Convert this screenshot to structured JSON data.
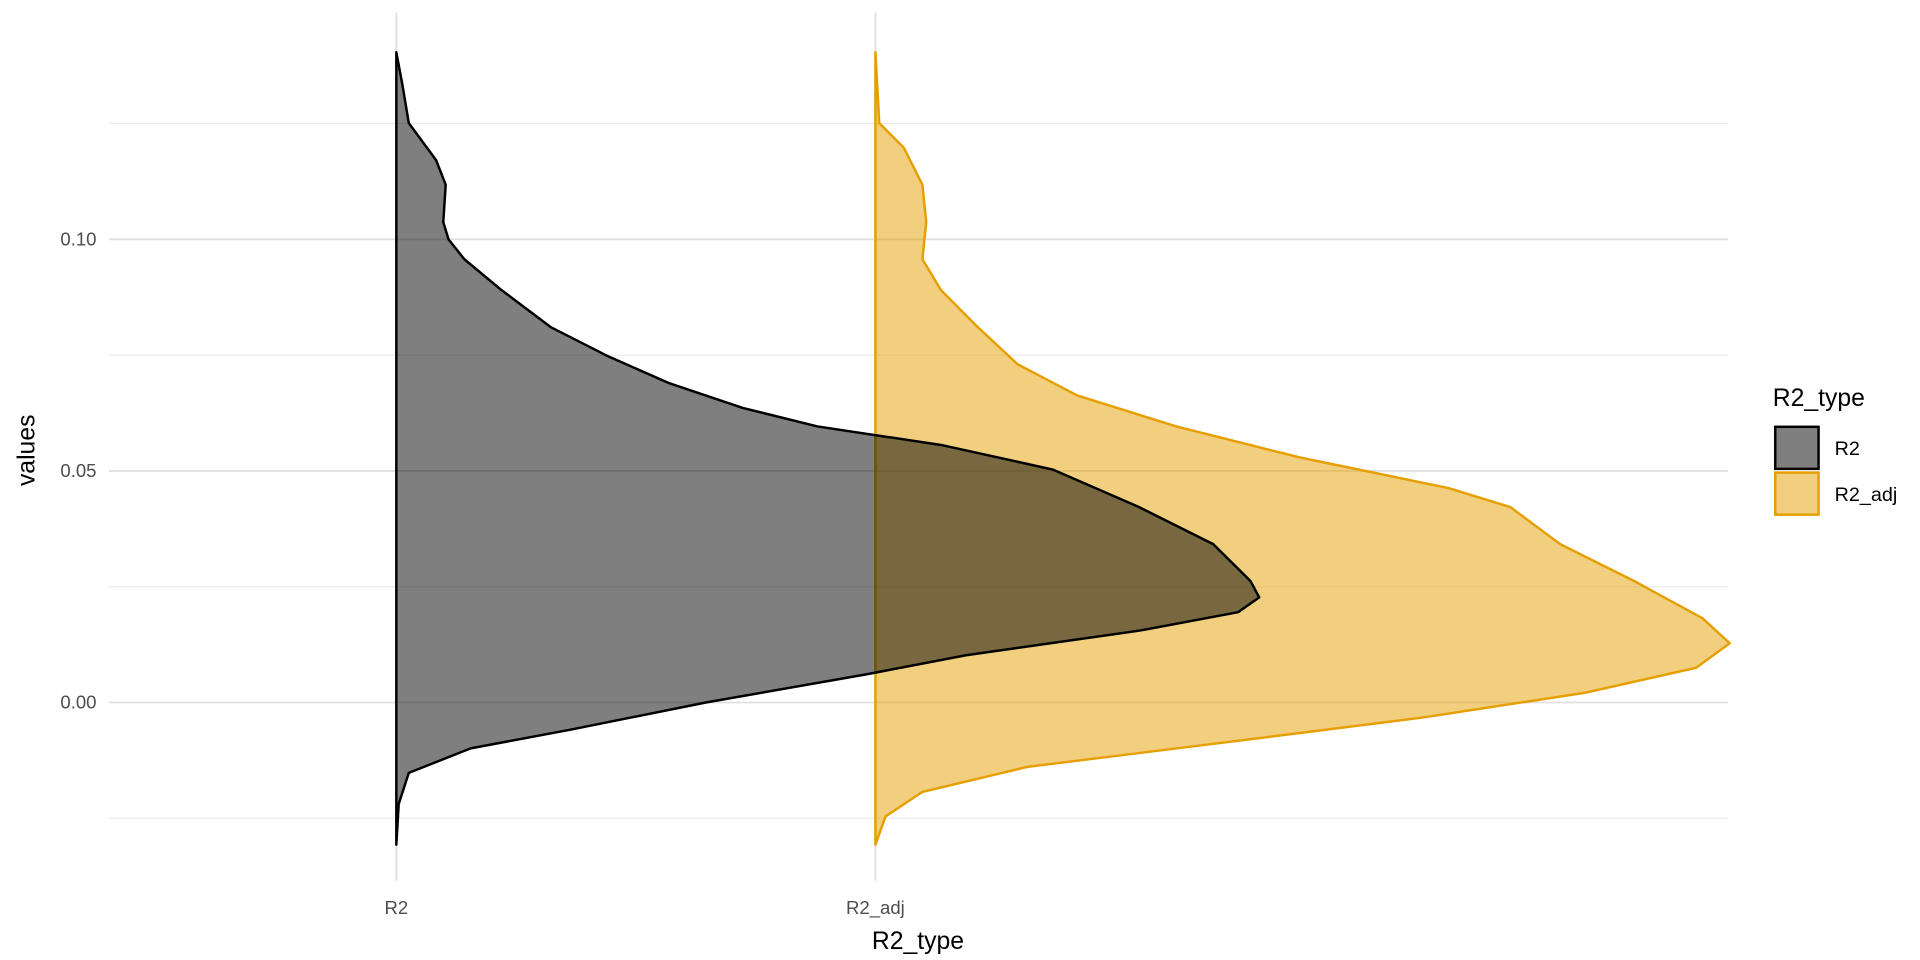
{
  "chart_data": {
    "type": "half-violin",
    "x_label": "R2_type",
    "y_label": "values",
    "legend_title": "R2_type",
    "categories": [
      "R2",
      "R2_adj"
    ],
    "xlim": [
      0.4,
      3.78
    ],
    "ylim": [
      -0.0385,
      0.149
    ],
    "yticks": [
      {
        "value": 0,
        "label": "0.00"
      },
      {
        "value": 0.05,
        "label": "0.05"
      },
      {
        "value": 0.1,
        "label": "0.10"
      }
    ],
    "minor_yticks": [
      -0.025,
      0.025,
      0.075,
      0.125
    ],
    "grid": true,
    "legend_position": "right",
    "series": [
      {
        "name": "R2",
        "color": "#000000",
        "fill": "#000000",
        "y": [
          0.1404,
          0.1332,
          0.1251,
          0.1171,
          0.1118,
          0.1037,
          0.1,
          0.0957,
          0.089,
          0.081,
          0.0749,
          0.069,
          0.0636,
          0.0596,
          0.0556,
          0.0503,
          0.0422,
          0.0342,
          0.0262,
          0.0227,
          0.0195,
          0.0155,
          0.0102,
          0.0061,
          0,
          -0.0059,
          -0.0099,
          -0.0152,
          -0.0219,
          -0.0307
        ],
        "density": [
          0,
          0.013,
          0.026,
          0.083,
          0.103,
          0.098,
          0.109,
          0.142,
          0.22,
          0.323,
          0.439,
          0.568,
          0.723,
          0.879,
          1.137,
          1.37,
          1.55,
          1.705,
          1.783,
          1.801,
          1.757,
          1.55,
          1.189,
          0.982,
          0.646,
          0.362,
          0.155,
          0.026,
          0.005,
          0
        ]
      },
      {
        "name": "R2_adj",
        "color": "#E69F00",
        "fill": "#E69F00",
        "y": [
          0.1404,
          0.1251,
          0.1198,
          0.1118,
          0.1037,
          0.0957,
          0.089,
          0.081,
          0.073,
          0.0663,
          0.0596,
          0.0529,
          0.0463,
          0.0422,
          0.0342,
          0.0262,
          0.0182,
          0.0128,
          0.0075,
          0.0021,
          -0.0032,
          -0.0086,
          -0.0139,
          -0.0193,
          -0.0246,
          -0.0307
        ],
        "density": [
          0,
          0.008,
          0.059,
          0.098,
          0.106,
          0.098,
          0.137,
          0.214,
          0.297,
          0.421,
          0.628,
          0.886,
          1.196,
          1.325,
          1.429,
          1.584,
          1.726,
          1.783,
          1.713,
          1.481,
          1.145,
          0.731,
          0.317,
          0.098,
          0.021,
          0
        ]
      }
    ]
  }
}
